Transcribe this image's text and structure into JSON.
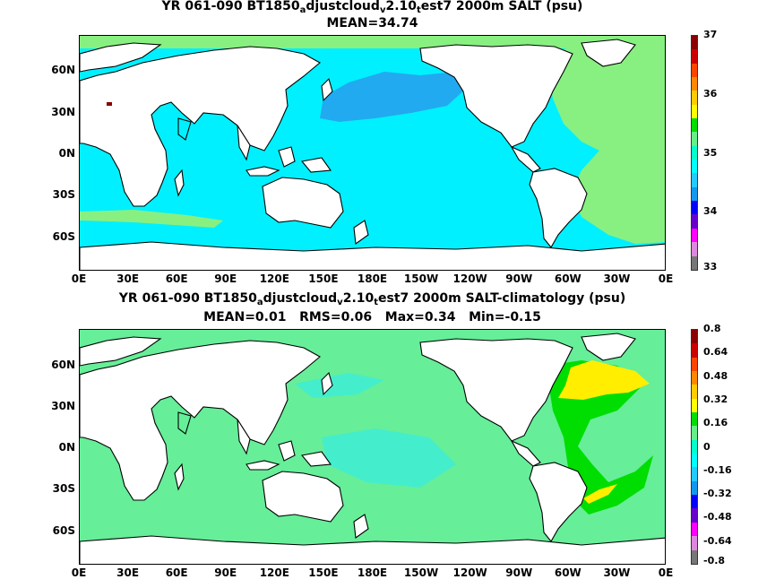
{
  "panel1": {
    "title_pre": "YR 061-090 BT1850",
    "sub1": "a",
    "mid1": "djustcloud",
    "sub2": "v",
    "mid2": "2.10",
    "sub3": "t",
    "title_post": "est7 2000m SALT (psu)",
    "stats": "MEAN=34.74",
    "colorbar": {
      "labels": [
        "37",
        "36",
        "35",
        "34",
        "33"
      ],
      "colors": [
        "#8b0000",
        "#cc0000",
        "#ff4400",
        "#ff8800",
        "#ffcc00",
        "#ffff00",
        "#00dd00",
        "#66ee88",
        "#00ffcc",
        "#00ffff",
        "#22ccff",
        "#1199ee",
        "#0000ff",
        "#6600cc",
        "#ff00ff",
        "#dd88dd",
        "#777777"
      ]
    }
  },
  "panel2": {
    "title_pre": "YR 061-090 BT1850",
    "sub1": "a",
    "mid1": "djustcloud",
    "sub2": "v",
    "mid2": "2.10",
    "sub3": "t",
    "title_post": "est7 2000m SALT-climatology (psu)",
    "stats": "MEAN=0.01   RMS=0.06   Max=0.34   Min=-0.15",
    "colorbar": {
      "labels": [
        "0.8",
        "0.64",
        "0.48",
        "0.32",
        "0.16",
        "0",
        "-0.16",
        "-0.32",
        "-0.48",
        "-0.64",
        "-0.8"
      ],
      "colors": [
        "#8b0000",
        "#cc0000",
        "#ff4400",
        "#ff8800",
        "#ffcc00",
        "#ffff00",
        "#00dd00",
        "#66ee88",
        "#00ffcc",
        "#00ffff",
        "#22ccff",
        "#1199ee",
        "#0000ff",
        "#6600cc",
        "#ff00ff",
        "#dd88dd",
        "#777777"
      ]
    }
  },
  "lat_labels": [
    "60N",
    "30N",
    "0N",
    "30S",
    "60S"
  ],
  "lon_labels": [
    "0E",
    "30E",
    "60E",
    "90E",
    "120E",
    "150E",
    "180E",
    "150W",
    "120W",
    "90W",
    "60W",
    "30W",
    "0E"
  ],
  "colors": {
    "p1_ocean": "#00f0ff",
    "p1_npac": "#22aaf0",
    "p1_atl": "#88f080",
    "p1_medsea": "#880000",
    "p2_ocean": "#66ee99",
    "p2_cyan": "#44eecc",
    "p2_green": "#00dd00",
    "p2_yellow": "#ffee00",
    "land": "#ffffff"
  }
}
